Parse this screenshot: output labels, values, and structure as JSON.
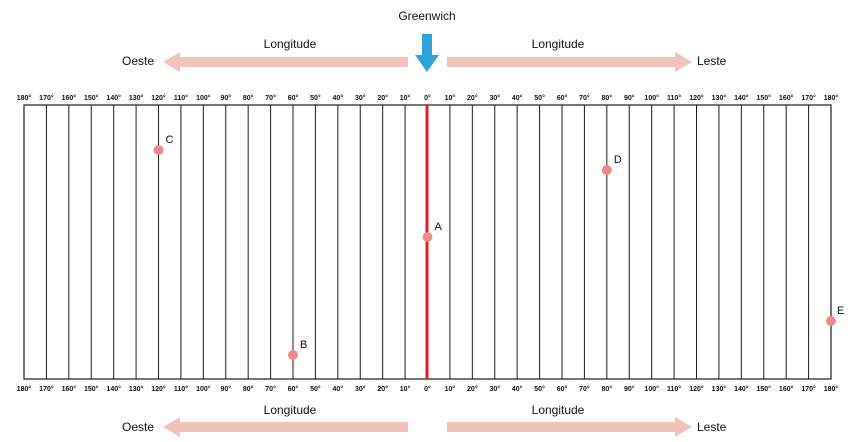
{
  "header": {
    "meridian_label": "Greenwich",
    "west_label": "Oeste",
    "east_label": "Leste",
    "longitude_label_left": "Longitude",
    "longitude_label_right": "Longitude"
  },
  "footer": {
    "west_label": "Oeste",
    "east_label": "Leste",
    "longitude_label_left": "Longitude",
    "longitude_label_right": "Longitude"
  },
  "tick_labels": [
    "180°",
    "170°",
    "160°",
    "150°",
    "140°",
    "130°",
    "120°",
    "110°",
    "100°",
    "90°",
    "80°",
    "70°",
    "60°",
    "50°",
    "40°",
    "30°",
    "20°",
    "10°",
    "0°",
    "10°",
    "20°",
    "30°",
    "40°",
    "50°",
    "60°",
    "70°",
    "80°",
    "90°",
    "100°",
    "110°",
    "120°",
    "130°",
    "140°",
    "150°",
    "160°",
    "170°",
    "180°"
  ],
  "points": [
    {
      "label": "A",
      "longitude": 0
    },
    {
      "label": "B",
      "longitude": -60
    },
    {
      "label": "C",
      "longitude": -120
    },
    {
      "label": "D",
      "longitude": 80
    },
    {
      "label": "E",
      "longitude": 180
    }
  ],
  "colors": {
    "meridian": "#e02020",
    "arrow": "#f3c1bc",
    "greenwich_arrow": "#2fa3dc",
    "point": "#f08a8a",
    "grid": "#1a1a1a"
  }
}
